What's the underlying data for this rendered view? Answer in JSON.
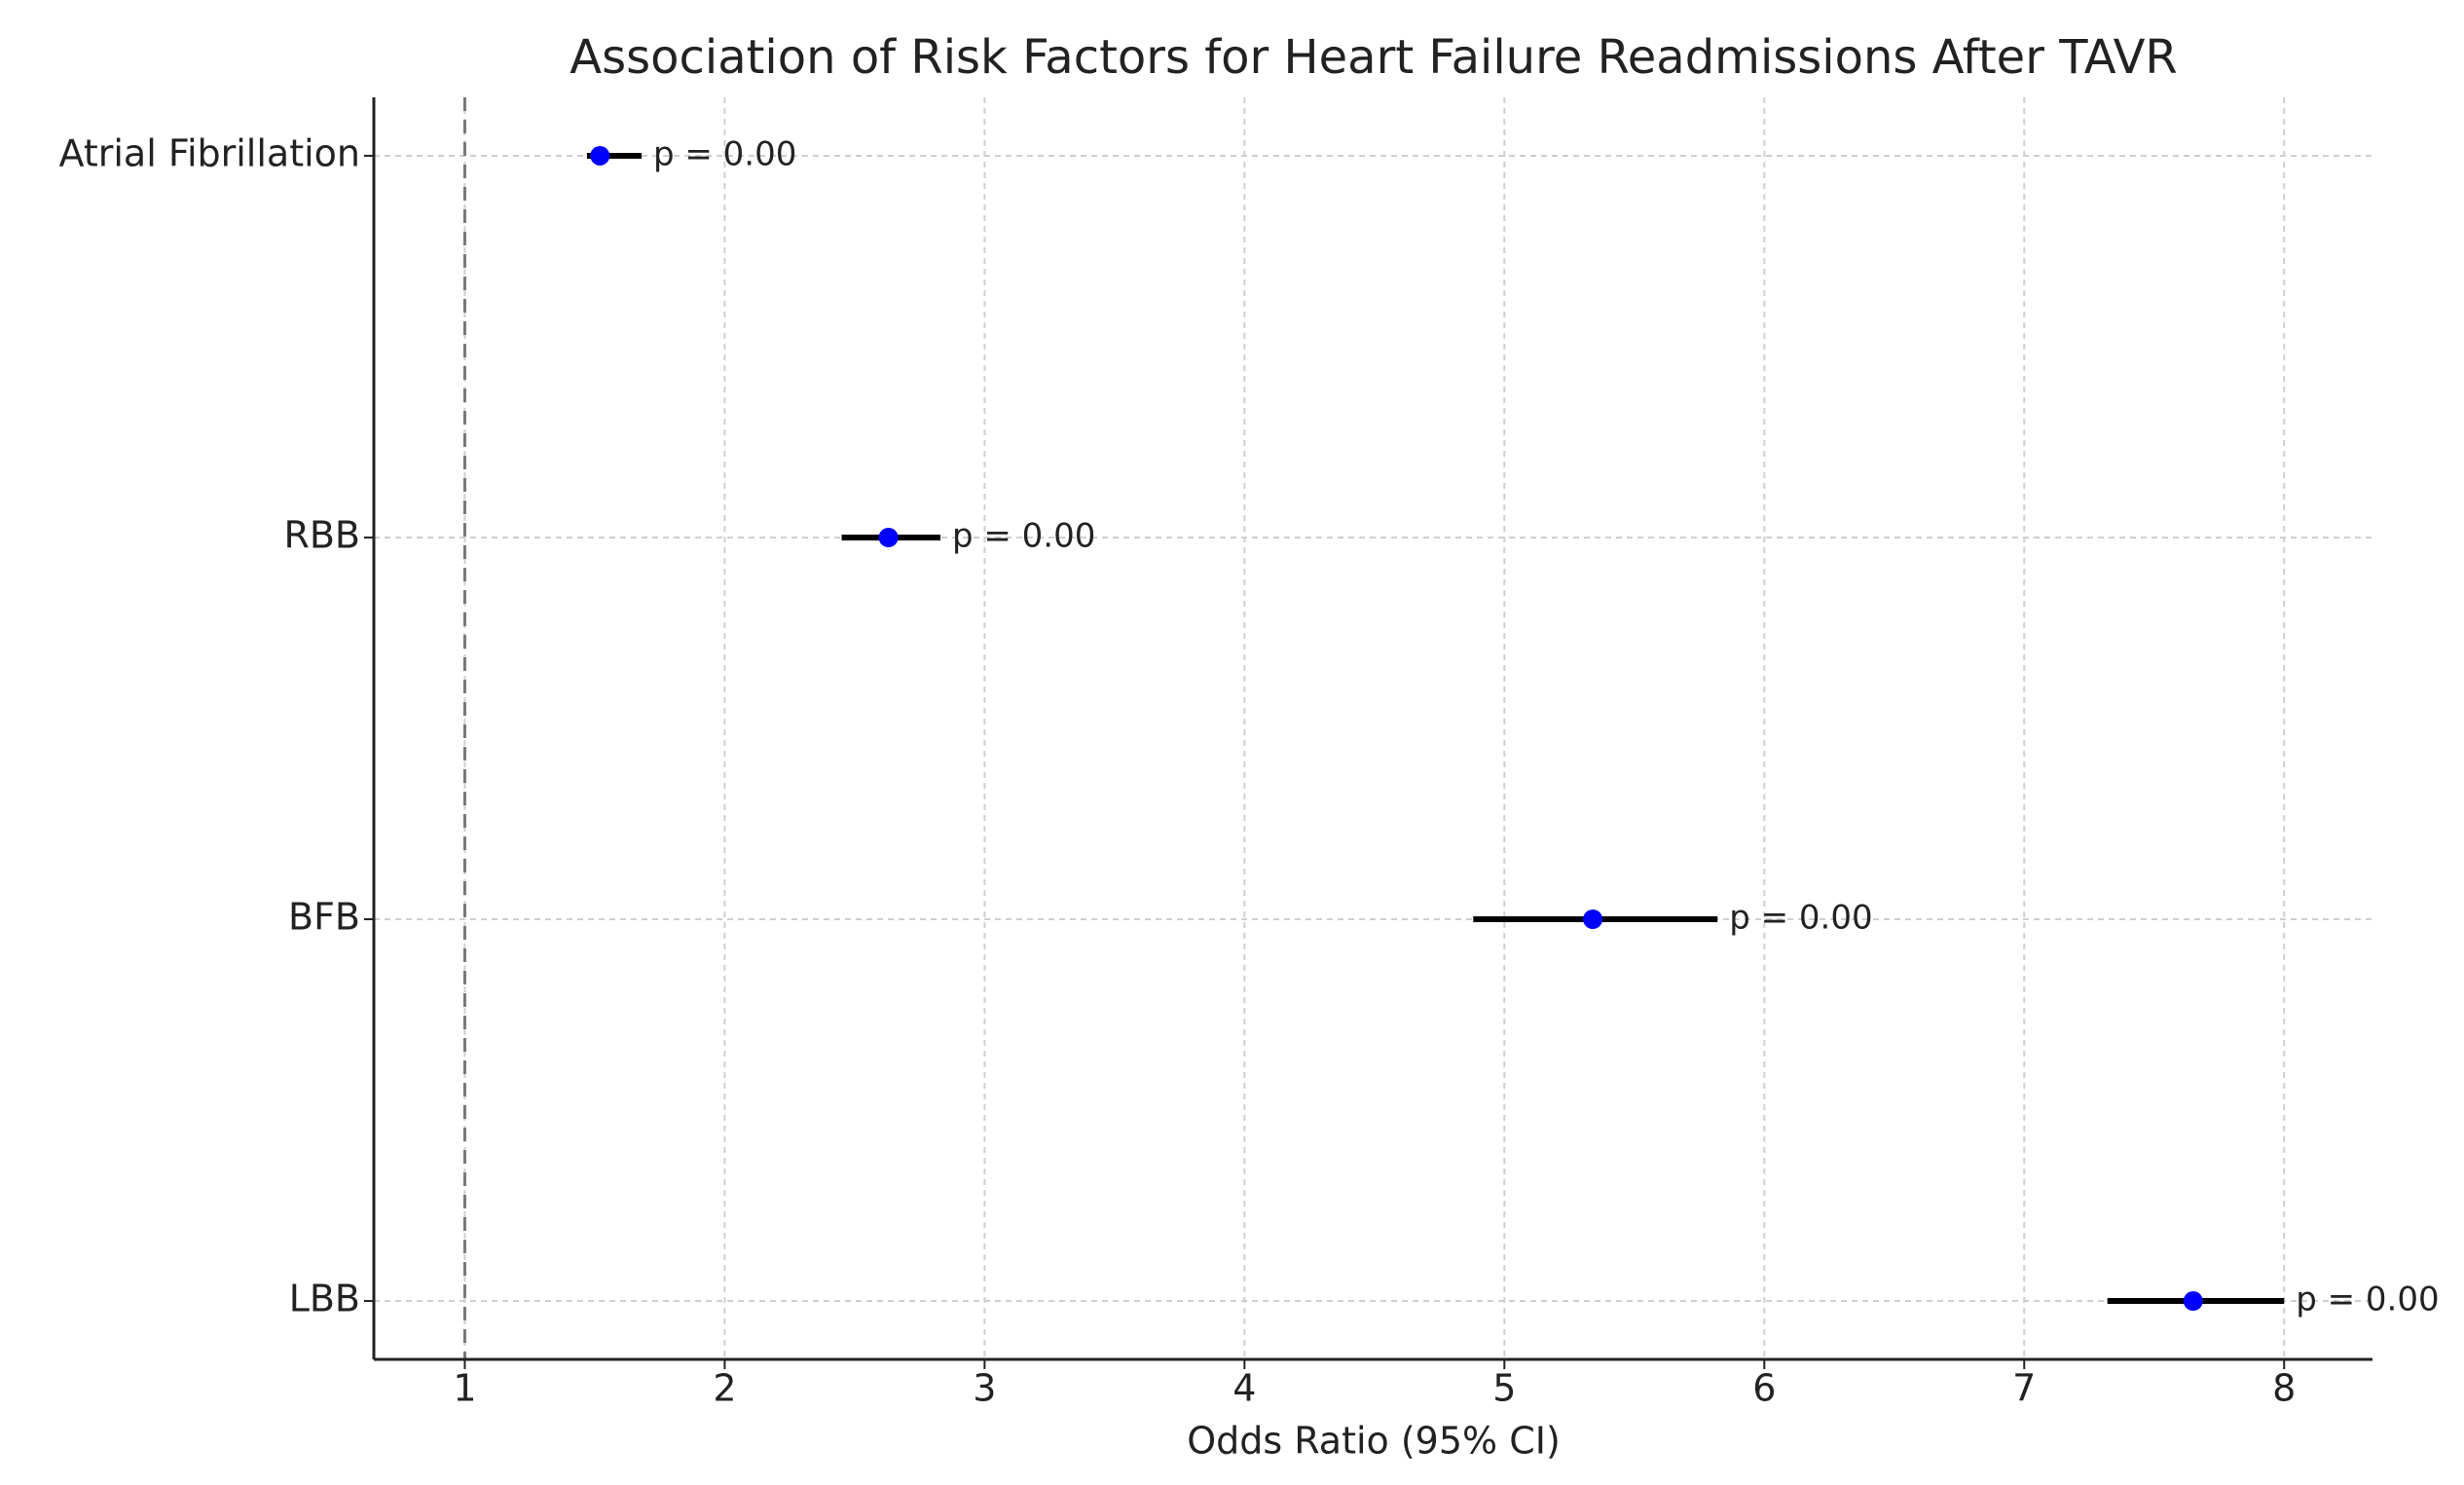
{
  "chart_data": {
    "type": "forest",
    "title": "Association of Risk Factors for Heart Failure Readmissions After TAVR",
    "x_label": "Odds Ratio (95% CI)",
    "categories": [
      "Atrial Fibrillation",
      "RBB",
      "BFB",
      "LBB"
    ],
    "values": [
      1.52,
      2.63,
      5.34,
      7.65
    ],
    "ci_low": [
      1.47,
      2.45,
      4.88,
      7.32
    ],
    "ci_high": [
      1.68,
      2.83,
      5.82,
      8.0
    ],
    "annotations": [
      "p = 0.00",
      "p = 0.00",
      "p = 0.00",
      "p = 0.00"
    ],
    "reference_line": 1,
    "xlim": [
      0.65,
      8.34
    ],
    "xticks": [
      1,
      2,
      3,
      4,
      5,
      6,
      7,
      8
    ],
    "grid": true,
    "color": "#0000ff",
    "ci_color": "#000000"
  }
}
